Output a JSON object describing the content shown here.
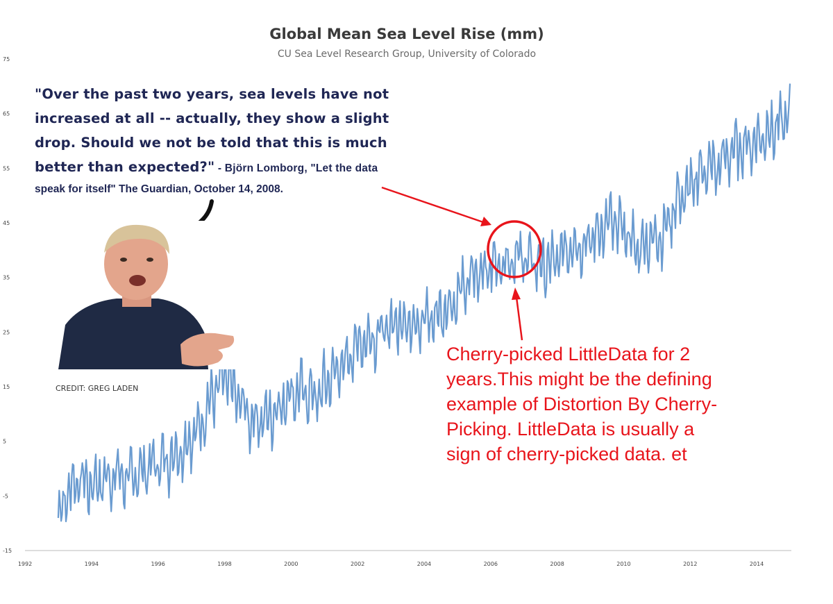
{
  "chart_data": {
    "type": "line",
    "title": "Global Mean Sea Level Rise (mm)",
    "subtitle": "CU Sea Level Research Group, University of Colorado",
    "xlim": [
      1992,
      2015
    ],
    "ylim": [
      -15,
      75
    ],
    "x_ticks": [
      "1992",
      "1994",
      "1996",
      "1998",
      "2000",
      "2002",
      "2004",
      "2006",
      "2008",
      "2010",
      "2012",
      "2014"
    ],
    "y_ticks": [
      "75",
      "65",
      "55",
      "45",
      "35",
      "25",
      "15",
      "5",
      "-5",
      "-15"
    ],
    "grid": false,
    "series": [
      {
        "color": "#6a9bd0",
        "x": [
          1993.0,
          1993.3,
          1993.6,
          1994.0,
          1994.4,
          1994.8,
          1995.2,
          1995.6,
          1996.0,
          1996.4,
          1996.8,
          1997.2,
          1997.6,
          1998.0,
          1998.4,
          1998.8,
          1999.2,
          1999.6,
          2000.0,
          2000.4,
          2000.8,
          2001.2,
          2001.6,
          2002.0,
          2002.4,
          2002.8,
          2003.2,
          2003.6,
          2004.0,
          2004.4,
          2004.8,
          2005.2,
          2005.6,
          2006.0,
          2006.4,
          2006.8,
          2007.2,
          2007.6,
          2008.0,
          2008.4,
          2008.8,
          2009.2,
          2009.6,
          2010.0,
          2010.4,
          2010.8,
          2011.2,
          2011.6,
          2012.0,
          2012.4,
          2012.8,
          2013.2,
          2013.6,
          2014.0,
          2014.4,
          2014.8,
          2015.0
        ],
        "y": [
          -9,
          -4,
          -2,
          -3,
          -2,
          -1,
          -2,
          0,
          1,
          2,
          4,
          7,
          13,
          17,
          13,
          9,
          9,
          11,
          14,
          14,
          13,
          17,
          19,
          23,
          24,
          25,
          27,
          27,
          27,
          28,
          30,
          33,
          36,
          37,
          38,
          39,
          38,
          37,
          38,
          41,
          41,
          43,
          45,
          44,
          40,
          42,
          43,
          49,
          51,
          55,
          55,
          58,
          59,
          60,
          62,
          63,
          66
        ]
      }
    ]
  },
  "quote": {
    "line1": "\"Over the past two years, sea levels have not",
    "line2": "increased at all -- actually, they show a slight",
    "line3": "drop. Should we not be told that this is much",
    "line4": "better than expected?\"",
    "attribution1": " - Björn Lomborg, \"Let the data",
    "attribution2": "speak for itself\" The Guardian, October 14, 2008."
  },
  "credit": "CREDIT: GREG LADEN",
  "annotation": {
    "line1": "Cherry-picked LittleData for 2",
    "line2": "years.This might be the defining",
    "line3": "example of Distortion By Cherry-",
    "line4": "Picking. LittleData is usually a",
    "line5": "sign of cherry-picked data. et"
  },
  "colors": {
    "line": "#6a9bd0",
    "annotation_red": "#e8141b",
    "quote_navy": "#1f2654"
  }
}
